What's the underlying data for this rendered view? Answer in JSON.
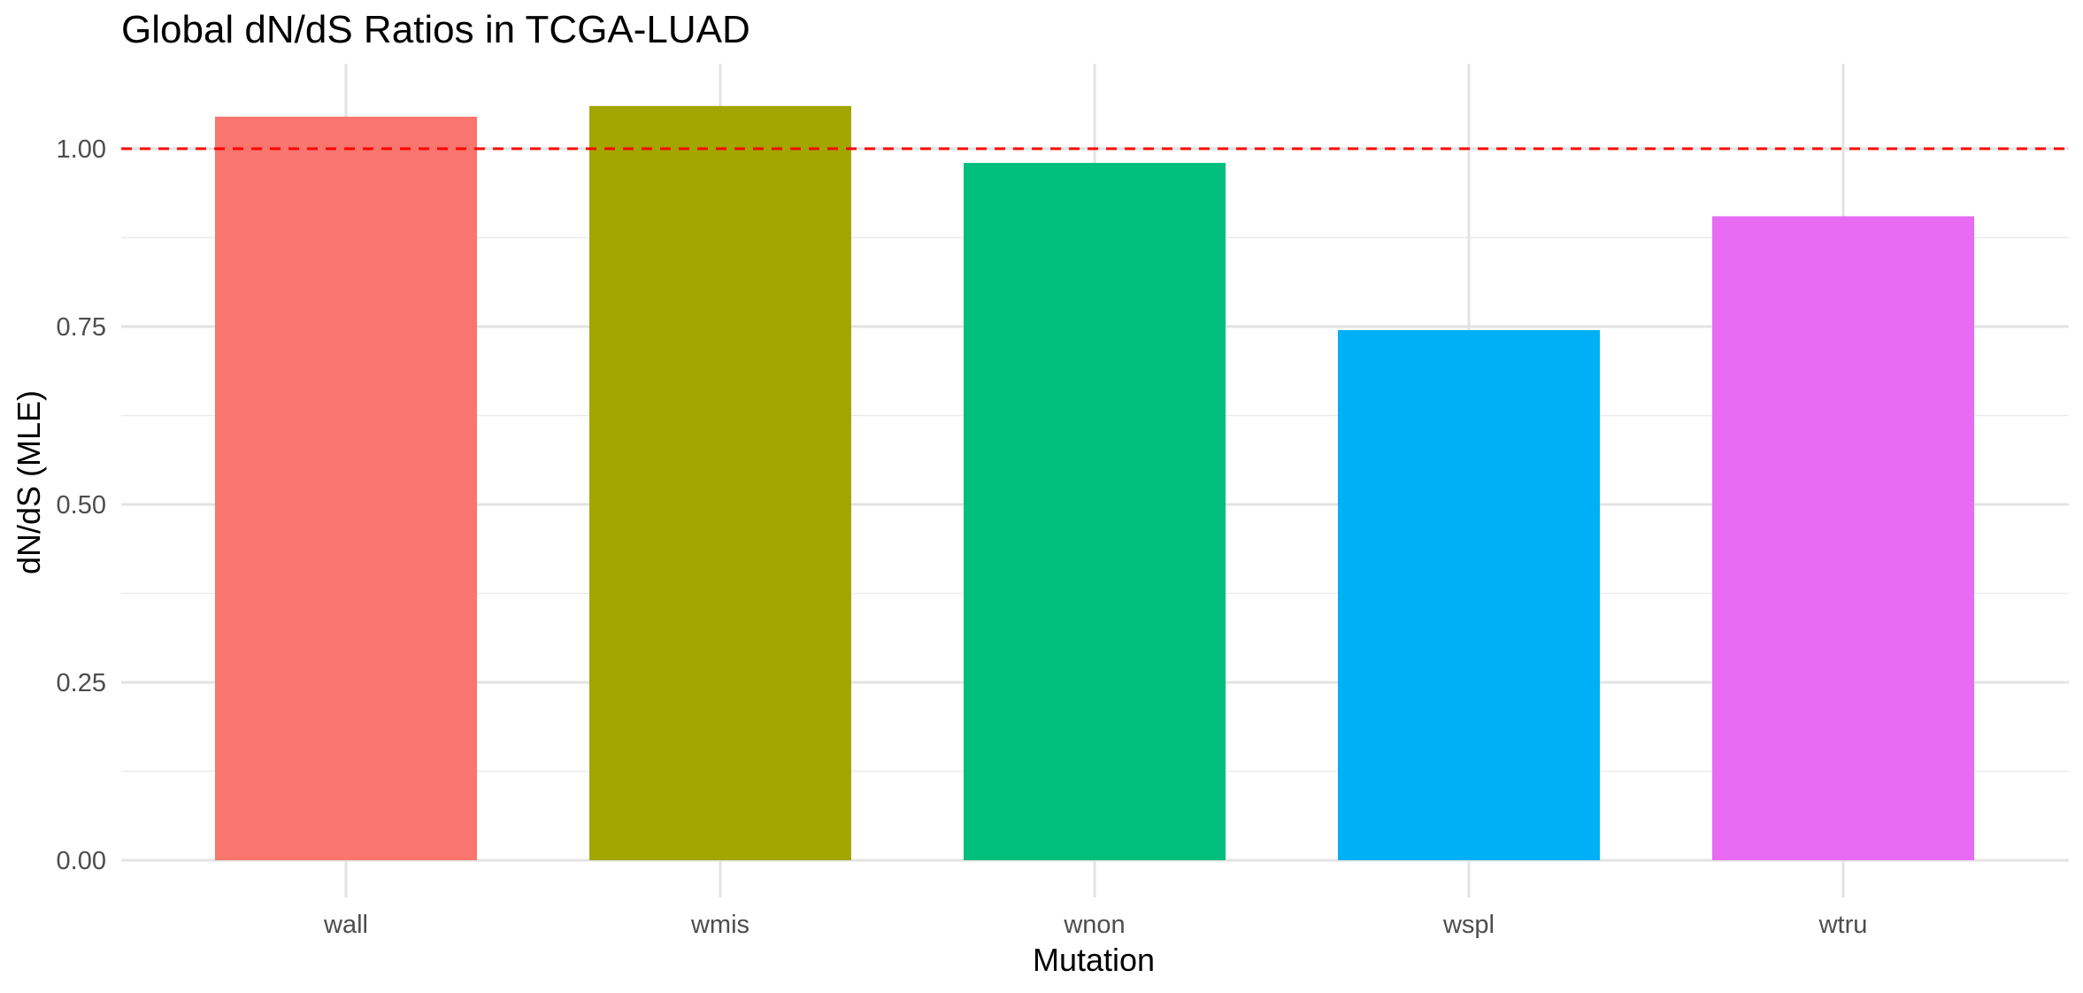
{
  "chart_data": {
    "type": "bar",
    "title": "Global dN/dS Ratios in TCGA-LUAD",
    "xlabel": "Mutation",
    "ylabel": "dN/dS (MLE)",
    "categories": [
      "wall",
      "wmis",
      "wnon",
      "wspl",
      "wtru"
    ],
    "values": [
      1.045,
      1.06,
      0.98,
      0.745,
      0.905
    ],
    "colors": [
      "#F8766D",
      "#A3A500",
      "#00BF7D",
      "#00B0F6",
      "#E76BF3"
    ],
    "ylim": [
      0,
      1.1
    ],
    "yticks": [
      0.0,
      0.25,
      0.5,
      0.75,
      1.0
    ],
    "ytick_labels": [
      "0.00",
      "0.25",
      "0.50",
      "0.75",
      "1.00"
    ],
    "reference_line": {
      "y": 1.0,
      "color": "#FF0000",
      "style": "dashed"
    },
    "grid": true,
    "legend": "none"
  }
}
